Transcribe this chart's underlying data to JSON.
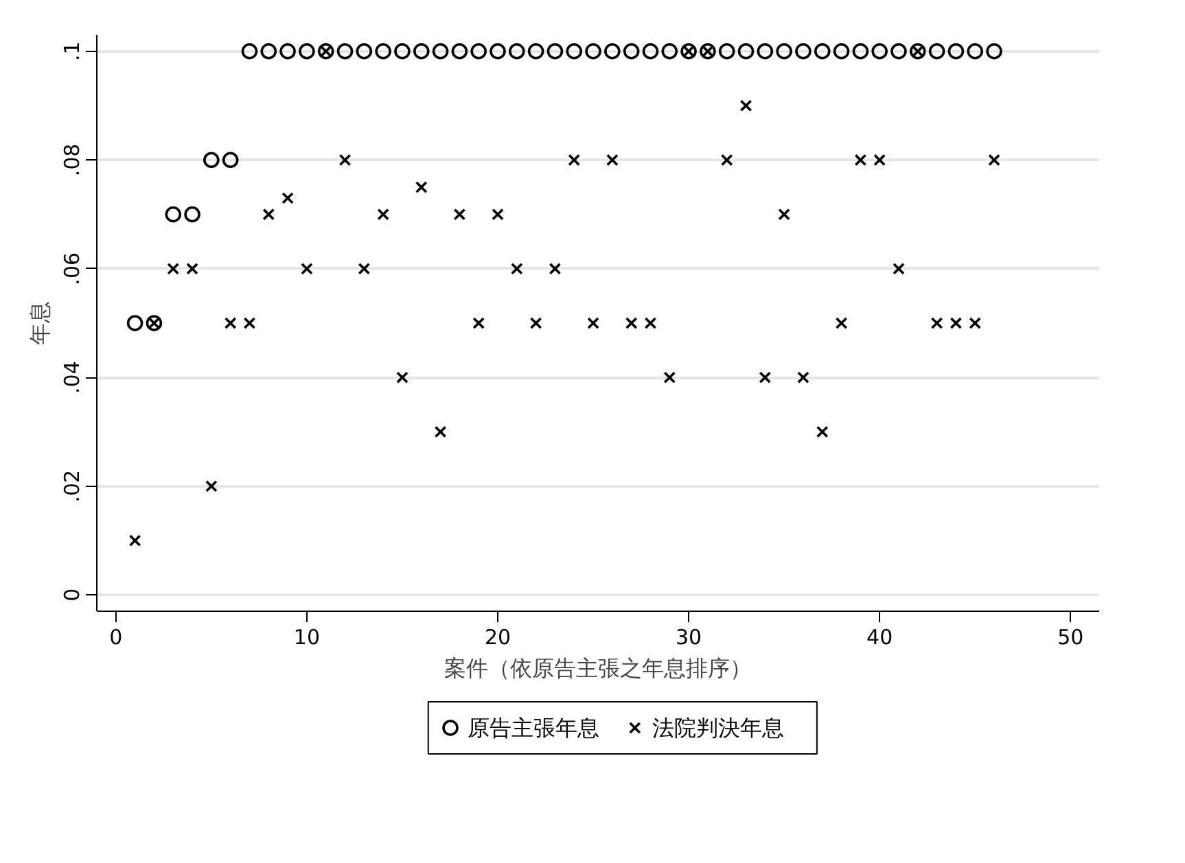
{
  "chart_data": {
    "type": "scatter",
    "xlabel": "案件（依原告主張之年息排序）",
    "ylabel": "年息",
    "x": [
      1,
      2,
      3,
      4,
      5,
      6,
      7,
      8,
      9,
      10,
      11,
      12,
      13,
      14,
      15,
      16,
      17,
      18,
      19,
      20,
      21,
      22,
      23,
      24,
      25,
      26,
      27,
      28,
      29,
      30,
      31,
      32,
      33,
      34,
      35,
      36,
      37,
      38,
      39,
      40,
      41,
      42,
      43,
      44,
      45,
      46
    ],
    "series": [
      {
        "name": "原告主張年息",
        "color": "#000000",
        "marker": "circle",
        "values": [
          0.05,
          0.05,
          0.07,
          0.07,
          0.08,
          0.08,
          0.1,
          0.1,
          0.1,
          0.1,
          0.1,
          0.1,
          0.1,
          0.1,
          0.1,
          0.1,
          0.1,
          0.1,
          0.1,
          0.1,
          0.1,
          0.1,
          0.1,
          0.1,
          0.1,
          0.1,
          0.1,
          0.1,
          0.1,
          0.1,
          0.1,
          0.1,
          0.1,
          0.1,
          0.1,
          0.1,
          0.1,
          0.1,
          0.1,
          0.1,
          0.1,
          0.1,
          0.1,
          0.1,
          0.1,
          0.1
        ]
      },
      {
        "name": "法院判決年息",
        "color": "#000000",
        "marker": "cross",
        "values": [
          0.01,
          0.05,
          0.06,
          0.06,
          0.02,
          0.05,
          0.05,
          0.07,
          0.073,
          0.06,
          0.1,
          0.08,
          0.06,
          0.07,
          0.04,
          0.075,
          0.03,
          0.07,
          0.05,
          0.07,
          0.06,
          0.05,
          0.06,
          0.08,
          0.05,
          0.08,
          0.05,
          0.05,
          0.04,
          0.1,
          0.1,
          0.08,
          0.09,
          0.04,
          0.07,
          0.04,
          0.03,
          0.05,
          0.08,
          0.08,
          0.06,
          0.1,
          0.05,
          0.05,
          0.05,
          0.08
        ]
      }
    ],
    "xlim": [
      -1,
      51.5
    ],
    "ylim": [
      -0.003,
      0.103
    ],
    "xticks": [
      0,
      10,
      20,
      30,
      40,
      50
    ],
    "yticks": [
      {
        "value": 0,
        "label": "0"
      },
      {
        "value": 0.02,
        "label": ".02"
      },
      {
        "value": 0.04,
        "label": ".04"
      },
      {
        "value": 0.06,
        "label": ".06"
      },
      {
        "value": 0.08,
        "label": ".08"
      },
      {
        "value": 0.1,
        "label": ".1"
      }
    ],
    "grid": "y",
    "legend": "bottom"
  }
}
